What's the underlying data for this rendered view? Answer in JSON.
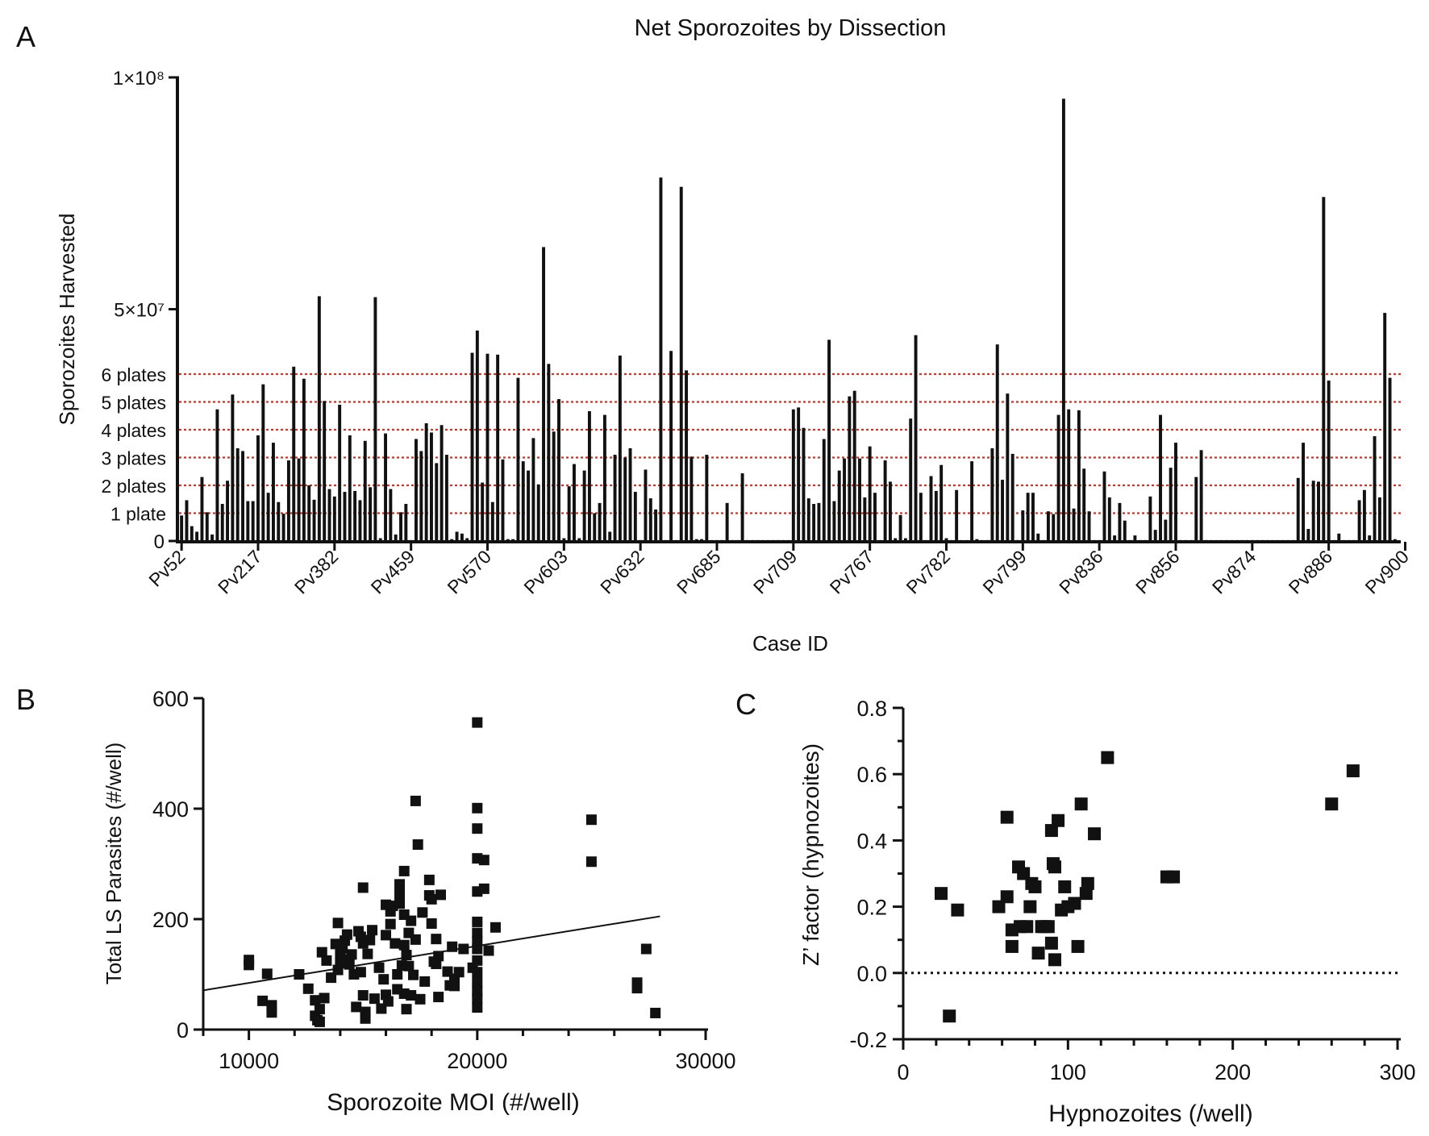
{
  "panels": {
    "a": "A",
    "b": "B",
    "c": "C"
  },
  "chart_data": [
    {
      "id": "A",
      "type": "bar",
      "title": "Net Sporozoites by Dissection",
      "xlabel": "Case ID",
      "ylabel": "Sporozoites Harvested",
      "ylim": [
        0,
        100000000
      ],
      "y_tick_labels": [
        {
          "value": 0,
          "label": "0"
        },
        {
          "value": 50000000,
          "label": "5×10⁷"
        },
        {
          "value": 100000000,
          "label": "1×10⁸"
        }
      ],
      "category_labels": [
        "Pv52",
        "Pv217",
        "Pv382",
        "Pv459",
        "Pv570",
        "Pv603",
        "Pv632",
        "Pv685",
        "Pv709",
        "Pv767",
        "Pv782",
        "Pv799",
        "Pv836",
        "Pv856",
        "Pv874",
        "Pv886",
        "Pv900"
      ],
      "label_bar_index": [
        0,
        15,
        30,
        45,
        60,
        75,
        90,
        105,
        120,
        135,
        150,
        165,
        180,
        195,
        210,
        225,
        240
      ],
      "reference_lines": [
        {
          "label": "1 plate",
          "value": 6000000
        },
        {
          "label": "2 plates",
          "value": 12000000
        },
        {
          "label": "3 plates",
          "value": 18000000
        },
        {
          "label": "4 plates",
          "value": 24000000
        },
        {
          "label": "5 plates",
          "value": 30000000
        },
        {
          "label": "6 plates",
          "value": 36000000
        }
      ],
      "reference_line_color": "#c0392b",
      "values": [
        5500000.0,
        8800000.0,
        3200000.0,
        2000000.0,
        13800000.0,
        6200000.0,
        1400000.0,
        28400000.0,
        8000000.0,
        13000000.0,
        31600000.0,
        20000000.0,
        19400000.0,
        8600000.0,
        8600000.0,
        22800000.0,
        33800000.0,
        10400000.0,
        21200000.0,
        8400000.0,
        5900000.0,
        17400000.0,
        37600000.0,
        17800000.0,
        35000000.0,
        12000000.0,
        8900000.0,
        52800000.0,
        30200000.0,
        11200000.0,
        9600000.0,
        29400000.0,
        10600000.0,
        22800000.0,
        10800000.0,
        8800000.0,
        21600000.0,
        11600000.0,
        52600000.0,
        600000.0,
        23200000.0,
        11200000.0,
        1400000.0,
        6200000.0,
        8000000.0,
        200000.0,
        22000000.0,
        19400000.0,
        25400000.0,
        23400000.0,
        16800000.0,
        25000000.0,
        18600000.0,
        400000.0,
        2000000.0,
        1600000.0,
        600000.0,
        40600000.0,
        45400000.0,
        12600000.0,
        40400000.0,
        8400000.0,
        40200000.0,
        17600000.0,
        400000.0,
        400000.0,
        35200000.0,
        17200000.0,
        15200000.0,
        22200000.0,
        12200000.0,
        63400000.0,
        38200000.0,
        23600000.0,
        30600000.0,
        600000.0,
        11800000.0,
        16600000.0,
        600000.0,
        15200000.0,
        28000000.0,
        6000000.0,
        8200000.0,
        27200000.0,
        2000000.0,
        18600000.0,
        40000000.0,
        18000000.0,
        20000000.0,
        10600000.0,
        200000.0,
        15400000.0,
        9200000.0,
        6800000.0,
        78400000.0,
        200000.0,
        41000000.0,
        200000.0,
        76400000.0,
        36800000.0,
        18200000.0,
        400000.0,
        400000.0,
        18600000.0,
        200000.0,
        200000.0,
        200000.0,
        8200000.0,
        200000.0,
        200000.0,
        14600000.0,
        200000.0,
        200000.0,
        200000.0,
        200000.0,
        200000.0,
        200000.0,
        200000.0,
        200000.0,
        200000.0,
        28400000.0,
        28800000.0,
        24400000.0,
        9200000.0,
        8000000.0,
        8200000.0,
        22000000.0,
        43400000.0,
        8600000.0,
        15200000.0,
        17800000.0,
        31200000.0,
        32400000.0,
        17800000.0,
        9400000.0,
        20400000.0,
        10400000.0,
        200000.0,
        17400000.0,
        12800000.0,
        600000.0,
        5600000.0,
        600000.0,
        26400000.0,
        44400000.0,
        10400000.0,
        200000.0,
        14000000.0,
        10800000.0,
        16400000.0,
        600000.0,
        200000.0,
        11000000.0,
        200000.0,
        200000.0,
        17200000.0,
        400000.0,
        200000.0,
        200000.0,
        20000000.0,
        42400000.0,
        13200000.0,
        31800000.0,
        18800000.0,
        200000.0,
        6600000.0,
        10400000.0,
        10400000.0,
        1600000.0,
        200000.0,
        6400000.0,
        5800000.0,
        27200000.0,
        95400000.0,
        28400000.0,
        7000000.0,
        28200000.0,
        15600000.0,
        6400000.0,
        200000.0,
        200000.0,
        15000000.0,
        9400000.0,
        1200000.0,
        8200000.0,
        4400000.0,
        200000.0,
        1200000.0,
        200000.0,
        200000.0,
        9600000.0,
        2400000.0,
        27200000.0,
        4600000.0,
        15800000.0,
        21200000.0,
        200000.0,
        200000.0,
        200000.0,
        13800000.0,
        19600000.0,
        200000.0,
        200000.0,
        200000.0,
        200000.0,
        200000.0,
        200000.0,
        200000.0,
        200000.0,
        200000.0,
        200000.0,
        200000.0,
        200000.0,
        200000.0,
        200000.0,
        200000.0,
        200000.0,
        200000.0,
        200000.0,
        13600000.0,
        21200000.0,
        2600000.0,
        13000000.0,
        12800000.0,
        74200000.0,
        34600000.0,
        200000.0,
        1600000.0,
        200000.0,
        200000.0,
        200000.0,
        8800000.0,
        11000000.0,
        1200000.0,
        22600000.0,
        9400000.0,
        49200000.0,
        35200000.0,
        400000.0
      ]
    },
    {
      "id": "B",
      "type": "scatter",
      "xlabel": "Sporozoite MOI (#/well)",
      "ylabel": "Total LS Parasites (#/well)",
      "xlim": [
        8000,
        30000
      ],
      "ylim": [
        0,
        600
      ],
      "x_ticks": [
        10000,
        20000,
        30000
      ],
      "y_ticks": [
        0,
        200,
        400,
        600
      ],
      "regression_line": {
        "x": [
          8000,
          28000
        ],
        "y": [
          71,
          205
        ]
      },
      "points": [
        [
          10000,
          126
        ],
        [
          10000,
          117
        ],
        [
          10600,
          52
        ],
        [
          10800,
          101
        ],
        [
          11000,
          44
        ],
        [
          11000,
          31
        ],
        [
          12200,
          100
        ],
        [
          12600,
          74
        ],
        [
          12900,
          53
        ],
        [
          12900,
          25
        ],
        [
          13000,
          17
        ],
        [
          13100,
          37
        ],
        [
          13100,
          14
        ],
        [
          13200,
          140
        ],
        [
          13300,
          57
        ],
        [
          13400,
          125
        ],
        [
          13600,
          94
        ],
        [
          13800,
          155
        ],
        [
          13900,
          193
        ],
        [
          13900,
          108
        ],
        [
          14000,
          120
        ],
        [
          14000,
          138
        ],
        [
          14100,
          147
        ],
        [
          14200,
          161
        ],
        [
          14300,
          172
        ],
        [
          14300,
          127
        ],
        [
          14400,
          118
        ],
        [
          14500,
          136
        ],
        [
          14600,
          100
        ],
        [
          14700,
          41
        ],
        [
          14800,
          178
        ],
        [
          14900,
          168
        ],
        [
          14900,
          104
        ],
        [
          15000,
          257
        ],
        [
          15000,
          62
        ],
        [
          15000,
          156
        ],
        [
          15100,
          32
        ],
        [
          15100,
          20
        ],
        [
          15200,
          137
        ],
        [
          15300,
          162
        ],
        [
          15400,
          180
        ],
        [
          15500,
          56
        ],
        [
          15700,
          112
        ],
        [
          15800,
          38
        ],
        [
          15900,
          91
        ],
        [
          16000,
          226
        ],
        [
          16000,
          171
        ],
        [
          16000,
          63
        ],
        [
          16100,
          51
        ],
        [
          16200,
          214
        ],
        [
          16200,
          191
        ],
        [
          16300,
          224
        ],
        [
          16400,
          156
        ],
        [
          16500,
          73
        ],
        [
          16500,
          100
        ],
        [
          16600,
          263
        ],
        [
          16600,
          245
        ],
        [
          16600,
          228
        ],
        [
          16700,
          116
        ],
        [
          16800,
          65
        ],
        [
          16800,
          208
        ],
        [
          16800,
          153
        ],
        [
          16800,
          287
        ],
        [
          16900,
          135
        ],
        [
          16900,
          37
        ],
        [
          17000,
          175
        ],
        [
          17000,
          115
        ],
        [
          17100,
          197
        ],
        [
          17100,
          62
        ],
        [
          17200,
          99
        ],
        [
          17300,
          163
        ],
        [
          17300,
          414
        ],
        [
          17400,
          335
        ],
        [
          17500,
          55
        ],
        [
          17600,
          212
        ],
        [
          17700,
          87
        ],
        [
          17900,
          243
        ],
        [
          17900,
          271
        ],
        [
          18000,
          236
        ],
        [
          18000,
          192
        ],
        [
          18100,
          123
        ],
        [
          18200,
          164
        ],
        [
          18200,
          119
        ],
        [
          18300,
          133
        ],
        [
          18300,
          59
        ],
        [
          18400,
          244
        ],
        [
          18700,
          105
        ],
        [
          18800,
          80
        ],
        [
          18900,
          150
        ],
        [
          19000,
          92
        ],
        [
          19000,
          79
        ],
        [
          19200,
          104
        ],
        [
          19400,
          146
        ],
        [
          19800,
          112
        ],
        [
          20000,
          556
        ],
        [
          20000,
          401
        ],
        [
          20000,
          364
        ],
        [
          20000,
          310
        ],
        [
          20000,
          250
        ],
        [
          20000,
          195
        ],
        [
          20000,
          175
        ],
        [
          20000,
          160
        ],
        [
          20000,
          146
        ],
        [
          20000,
          125
        ],
        [
          20000,
          104
        ],
        [
          20000,
          86
        ],
        [
          20000,
          70
        ],
        [
          20000,
          56
        ],
        [
          20000,
          40
        ],
        [
          20300,
          307
        ],
        [
          20300,
          255
        ],
        [
          20500,
          143
        ],
        [
          20800,
          185
        ],
        [
          25000,
          380
        ],
        [
          25000,
          304
        ],
        [
          27000,
          85
        ],
        [
          27000,
          75
        ],
        [
          27400,
          146
        ],
        [
          27800,
          30
        ]
      ]
    },
    {
      "id": "C",
      "type": "scatter",
      "xlabel": "Hypnozoites (/well)",
      "ylabel": "Z’ factor (hypnozoites)",
      "xlim": [
        0,
        300
      ],
      "ylim": [
        -0.2,
        0.8
      ],
      "x_ticks": [
        0,
        100,
        200,
        300
      ],
      "y_ticks": [
        -0.2,
        0.0,
        0.2,
        0.4,
        0.6,
        0.8
      ],
      "y_tick_labels": [
        "-0.2",
        "0.0",
        "0.2",
        "0.4",
        "0.6",
        "0.8"
      ],
      "reference_line": {
        "y": 0.0,
        "style": "dotted"
      },
      "points": [
        [
          23,
          0.24
        ],
        [
          28,
          -0.13
        ],
        [
          33,
          0.19
        ],
        [
          58,
          0.2
        ],
        [
          63,
          0.47
        ],
        [
          63,
          0.23
        ],
        [
          66,
          0.13
        ],
        [
          66,
          0.08
        ],
        [
          70,
          0.32
        ],
        [
          71,
          0.14
        ],
        [
          73,
          0.3
        ],
        [
          75,
          0.14
        ],
        [
          77,
          0.2
        ],
        [
          78,
          0.27
        ],
        [
          80,
          0.26
        ],
        [
          82,
          0.06
        ],
        [
          84,
          0.14
        ],
        [
          86,
          0.14
        ],
        [
          88,
          0.14
        ],
        [
          90,
          0.43
        ],
        [
          90,
          0.09
        ],
        [
          91,
          0.33
        ],
        [
          92,
          0.32
        ],
        [
          92,
          0.04
        ],
        [
          94,
          0.46
        ],
        [
          96,
          0.19
        ],
        [
          98,
          0.26
        ],
        [
          100,
          0.2
        ],
        [
          104,
          0.21
        ],
        [
          106,
          0.08
        ],
        [
          108,
          0.51
        ],
        [
          111,
          0.24
        ],
        [
          112,
          0.27
        ],
        [
          116,
          0.42
        ],
        [
          124,
          0.65
        ],
        [
          160,
          0.29
        ],
        [
          164,
          0.29
        ],
        [
          260,
          0.51
        ],
        [
          273,
          0.61
        ]
      ]
    }
  ]
}
